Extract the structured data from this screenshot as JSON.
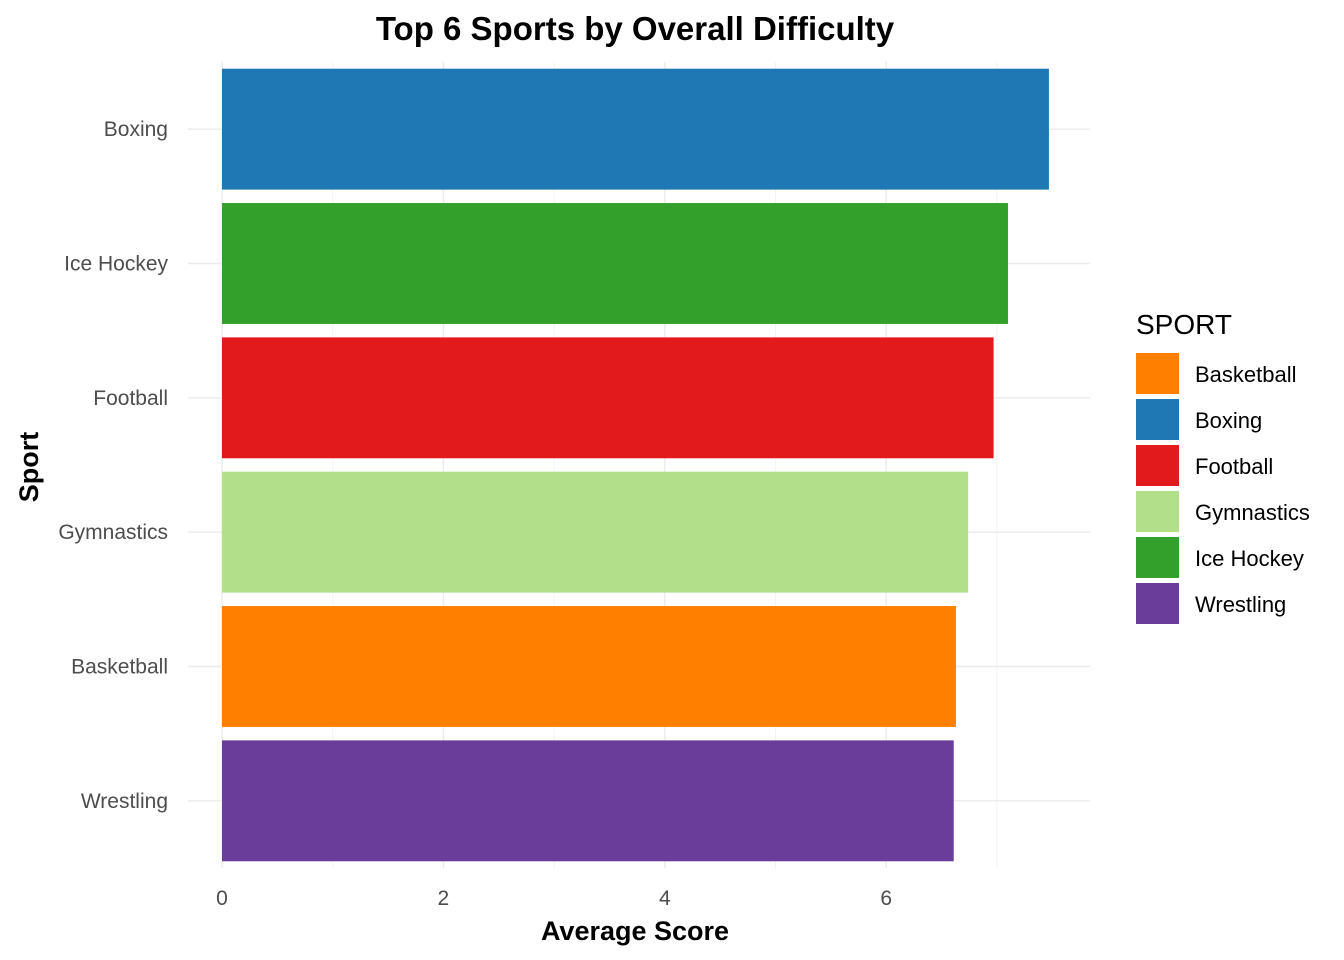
{
  "chart_data": {
    "type": "bar",
    "orientation": "horizontal",
    "title": "Top 6 Sports by Overall Difficulty",
    "xlabel": "Average Score",
    "ylabel": "Sport",
    "categories": [
      "Boxing",
      "Ice Hockey",
      "Football",
      "Gymnastics",
      "Basketball",
      "Wrestling"
    ],
    "values": [
      7.47,
      7.1,
      6.97,
      6.74,
      6.63,
      6.61
    ],
    "colors": [
      "#1F78B4",
      "#33A02C",
      "#E31A1C",
      "#B2DF8A",
      "#FF7F00",
      "#6A3D9A"
    ],
    "xlim": [
      0,
      7.84
    ],
    "xticks": [
      0,
      2,
      4,
      6
    ],
    "grid": true,
    "legend": {
      "title": "SPORT",
      "position": "right",
      "items": [
        {
          "label": "Basketball",
          "color": "#FF7F00"
        },
        {
          "label": "Boxing",
          "color": "#1F78B4"
        },
        {
          "label": "Football",
          "color": "#E31A1C"
        },
        {
          "label": "Gymnastics",
          "color": "#B2DF8A"
        },
        {
          "label": "Ice Hockey",
          "color": "#33A02C"
        },
        {
          "label": "Wrestling",
          "color": "#6A3D9A"
        }
      ]
    }
  }
}
